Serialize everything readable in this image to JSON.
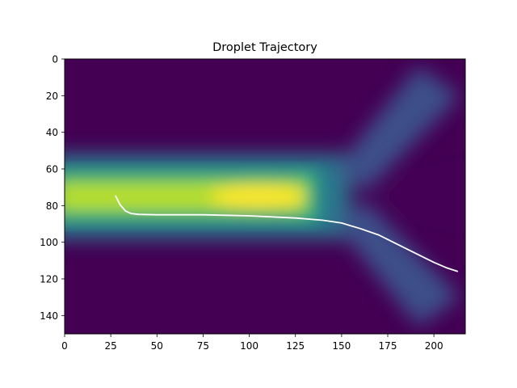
{
  "chart_data": {
    "type": "heatmap",
    "title": "Droplet Trajectory",
    "xlabel": "",
    "ylabel": "",
    "xlim": [
      0,
      217
    ],
    "ylim": [
      150,
      0
    ],
    "y_inverted": true,
    "colormap": "viridis",
    "x_ticks": [
      0,
      25,
      50,
      75,
      100,
      125,
      150,
      175,
      200
    ],
    "y_ticks": [
      0,
      20,
      40,
      60,
      80,
      100,
      120,
      140
    ],
    "x_tick_labels": [
      "0",
      "25",
      "50",
      "75",
      "100",
      "125",
      "150",
      "175",
      "200"
    ],
    "y_tick_labels": [
      "0",
      "20",
      "40",
      "60",
      "80",
      "100",
      "120",
      "140"
    ],
    "channel_field": {
      "main_channel": {
        "x_range": [
          0,
          150
        ],
        "center_y": 75,
        "half_width": 22
      },
      "branches": [
        {
          "name": "upper",
          "from": [
            150,
            75
          ],
          "to": [
            195,
            4
          ]
        },
        {
          "name": "lower",
          "from": [
            150,
            75
          ],
          "to": [
            195,
            146
          ]
        }
      ],
      "peak_location": [
        105,
        75
      ]
    },
    "series": [
      {
        "kind": "line",
        "color": "#ffffff",
        "x": [
          27.5,
          30,
          33,
          36,
          40,
          50,
          75,
          100,
          125,
          140,
          150,
          160,
          170,
          180,
          190,
          200,
          207,
          213
        ],
        "y": [
          74.5,
          79.5,
          83,
          84.3,
          84.8,
          85,
          85,
          85.6,
          86.8,
          88,
          89.5,
          92.5,
          96,
          101,
          106,
          111,
          114,
          116
        ]
      }
    ],
    "grid": false,
    "legend": "none"
  }
}
